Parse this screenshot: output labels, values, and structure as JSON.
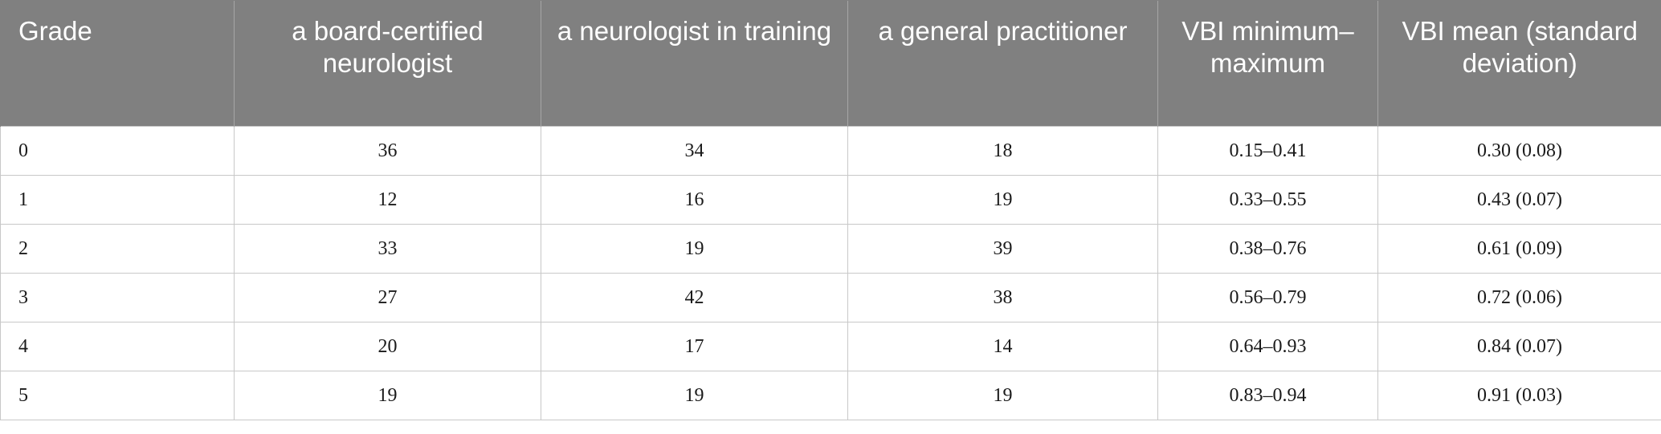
{
  "table": {
    "headers": [
      "Grade",
      "a board-certified neurologist",
      "a neurologist in training",
      "a general practitioner",
      "VBI minimum–maximum",
      "VBI mean (standard deviation)"
    ],
    "rows": [
      [
        "0",
        "36",
        "34",
        "18",
        "0.15–0.41",
        "0.30 (0.08)"
      ],
      [
        "1",
        "12",
        "16",
        "19",
        "0.33–0.55",
        "0.43 (0.07)"
      ],
      [
        "2",
        "33",
        "19",
        "39",
        "0.38–0.76",
        "0.61 (0.09)"
      ],
      [
        "3",
        "27",
        "42",
        "38",
        "0.56–0.79",
        "0.72 (0.06)"
      ],
      [
        "4",
        "20",
        "17",
        "14",
        "0.64–0.93",
        "0.84 (0.07)"
      ],
      [
        "5",
        "19",
        "19",
        "19",
        "0.83–0.94",
        "0.91 (0.03)"
      ]
    ]
  },
  "colors": {
    "header_background": "#808080",
    "header_text": "#ffffff",
    "grid_line": "#c8c8c8"
  }
}
